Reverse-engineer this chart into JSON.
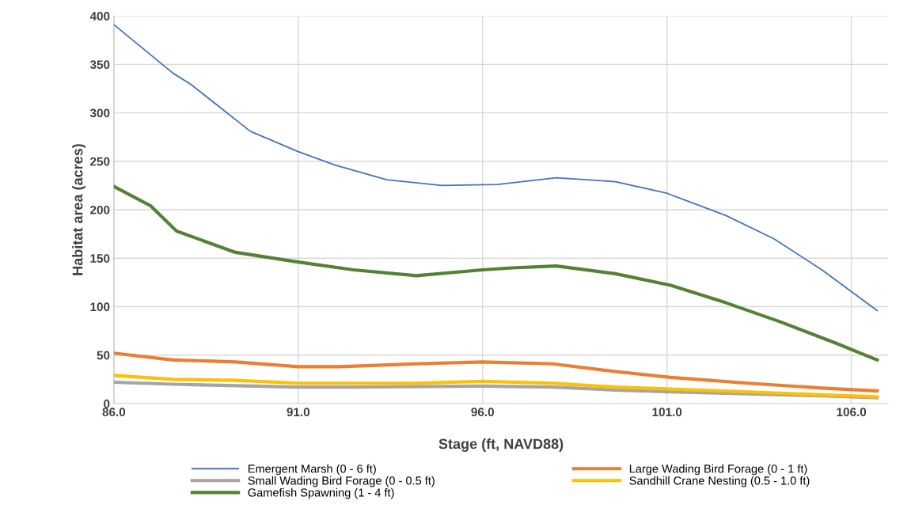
{
  "chart_data": {
    "type": "line",
    "xlabel": "Stage (ft, NAVD88)",
    "ylabel": "Habitat area (acres)",
    "xlim": [
      86,
      107
    ],
    "xticks": [
      {
        "value": 86,
        "label": "86.0"
      },
      {
        "value": 91,
        "label": "91.0"
      },
      {
        "value": 96,
        "label": "96.0"
      },
      {
        "value": 101,
        "label": "101.0"
      },
      {
        "value": 106,
        "label": "106.0"
      }
    ],
    "ylim": [
      0,
      400
    ],
    "yticks": [
      0,
      50,
      100,
      150,
      200,
      250,
      300,
      350,
      400
    ],
    "grid": true,
    "legend": "bottom",
    "marker": "none",
    "line_style": "solid",
    "series": [
      {
        "name": "Emergent Marsh (0 - 6 ft)",
        "color": "#4472c4",
        "x": [
          86.0,
          87.6,
          88.1,
          89.7,
          91.0,
          92.0,
          93.4,
          94.9,
          96.4,
          98.0,
          99.6,
          101.0,
          102.6,
          103.9,
          105.2,
          106.7
        ],
        "values": [
          391,
          341,
          329,
          281,
          260,
          246,
          231,
          225,
          226,
          233,
          229,
          217,
          194,
          170,
          138,
          96
        ]
      },
      {
        "name": "Large Wading Bird Forage (0 - 1 ft)",
        "color": "#ed7d31",
        "x": [
          86.0,
          87.6,
          89.3,
          91.0,
          92.1,
          94.2,
          96.0,
          97.9,
          99.6,
          101.1,
          103.2,
          105.2,
          106.7
        ],
        "values": [
          52,
          45,
          43,
          38,
          38,
          41,
          43,
          41,
          33,
          27,
          21,
          16,
          13
        ]
      },
      {
        "name": "Small Wading Bird Forage (0 - 0.5 ft)",
        "color": "#a5a5a5",
        "x": [
          86.0,
          87.6,
          91.0,
          92.5,
          96.0,
          97.9,
          99.6,
          101.1,
          103.2,
          105.2,
          106.7
        ],
        "values": [
          22,
          20,
          17,
          17,
          18,
          17,
          14,
          12,
          10,
          8,
          6
        ]
      },
      {
        "name": "Sandhill Crane Nesting (0.5 - 1.0 ft)",
        "color": "#ffc000",
        "x": [
          86.0,
          87.6,
          89.3,
          91.0,
          92.1,
          94.2,
          96.0,
          97.9,
          99.6,
          101.1,
          103.2,
          105.2,
          106.7
        ],
        "values": [
          29,
          25,
          24,
          21,
          21,
          21,
          23,
          21,
          17,
          15,
          12,
          9,
          7
        ]
      },
      {
        "name": "Gamefish Spawning (1 - 4 ft)",
        "color": "#548235",
        "x": [
          86.0,
          87.0,
          87.7,
          89.3,
          91.0,
          92.5,
          94.2,
          96.0,
          96.8,
          98.0,
          99.6,
          101.1,
          102.6,
          104.1,
          105.6,
          106.7
        ],
        "values": [
          224,
          204,
          178,
          156,
          146,
          138,
          132,
          138,
          140,
          142,
          134,
          122,
          104,
          84,
          62,
          45
        ]
      }
    ]
  }
}
